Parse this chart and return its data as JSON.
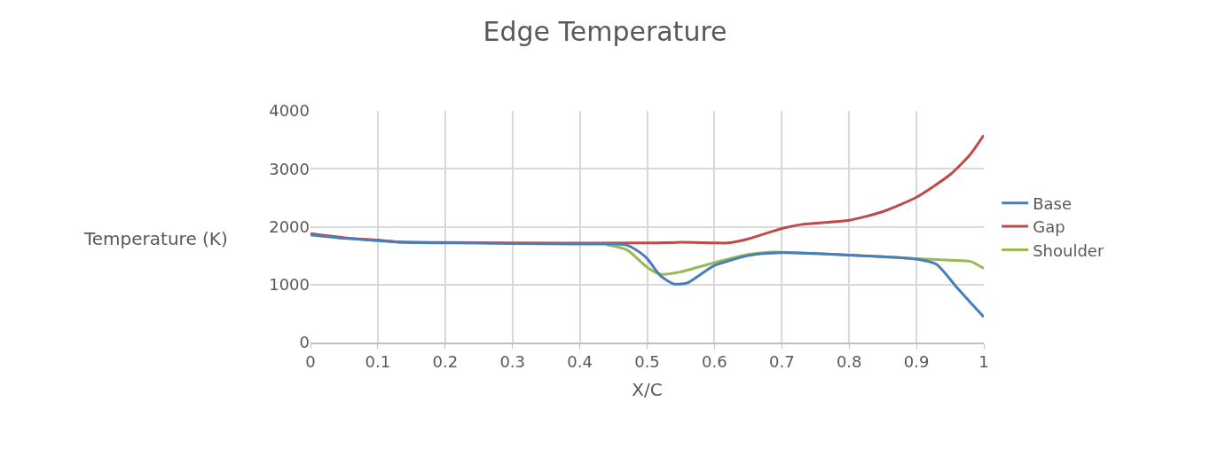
{
  "chart_data": {
    "type": "line",
    "title": "Edge Temperature",
    "xlabel": "X/C",
    "ylabel": "Temperature (K)",
    "xlim": [
      0,
      1
    ],
    "xticks": [
      0,
      0.1,
      0.2,
      0.3,
      0.4,
      0.5,
      0.6,
      0.7,
      0.8,
      0.9,
      1
    ],
    "ylim": [
      0,
      4000
    ],
    "yticks": [
      0,
      1000,
      2000,
      3000,
      4000
    ],
    "grid": true,
    "legend": "right",
    "marker": "none",
    "line_style": "solid",
    "series": [
      {
        "name": "Base",
        "color": "#4a7ebb",
        "x": [
          0,
          0.05,
          0.1,
          0.13,
          0.2,
          0.3,
          0.4,
          0.45,
          0.47,
          0.49,
          0.5,
          0.52,
          0.54,
          0.56,
          0.58,
          0.6,
          0.65,
          0.7,
          0.8,
          0.9,
          0.93,
          0.96,
          1
        ],
        "values": [
          1860,
          1800,
          1760,
          1730,
          1720,
          1710,
          1700,
          1700,
          1680,
          1550,
          1450,
          1150,
          1010,
          1030,
          1180,
          1330,
          1500,
          1550,
          1510,
          1440,
          1350,
          950,
          440
        ]
      },
      {
        "name": "Gap",
        "color": "#be4b48",
        "x": [
          0,
          0.05,
          0.1,
          0.13,
          0.3,
          0.5,
          0.55,
          0.6,
          0.62,
          0.65,
          0.7,
          0.73,
          0.75,
          0.8,
          0.85,
          0.9,
          0.95,
          0.98,
          1
        ],
        "values": [
          1880,
          1810,
          1770,
          1740,
          1720,
          1720,
          1730,
          1720,
          1720,
          1790,
          1970,
          2040,
          2060,
          2110,
          2260,
          2510,
          2900,
          3250,
          3580
        ]
      },
      {
        "name": "Shoulder",
        "color": "#98b954",
        "x": [
          0.44,
          0.47,
          0.5,
          0.52,
          0.55,
          0.6,
          0.65,
          0.68,
          0.7,
          0.8,
          0.9,
          0.95,
          0.98,
          1
        ],
        "values": [
          1690,
          1600,
          1300,
          1180,
          1220,
          1380,
          1520,
          1560,
          1560,
          1510,
          1450,
          1420,
          1400,
          1280
        ]
      }
    ]
  }
}
